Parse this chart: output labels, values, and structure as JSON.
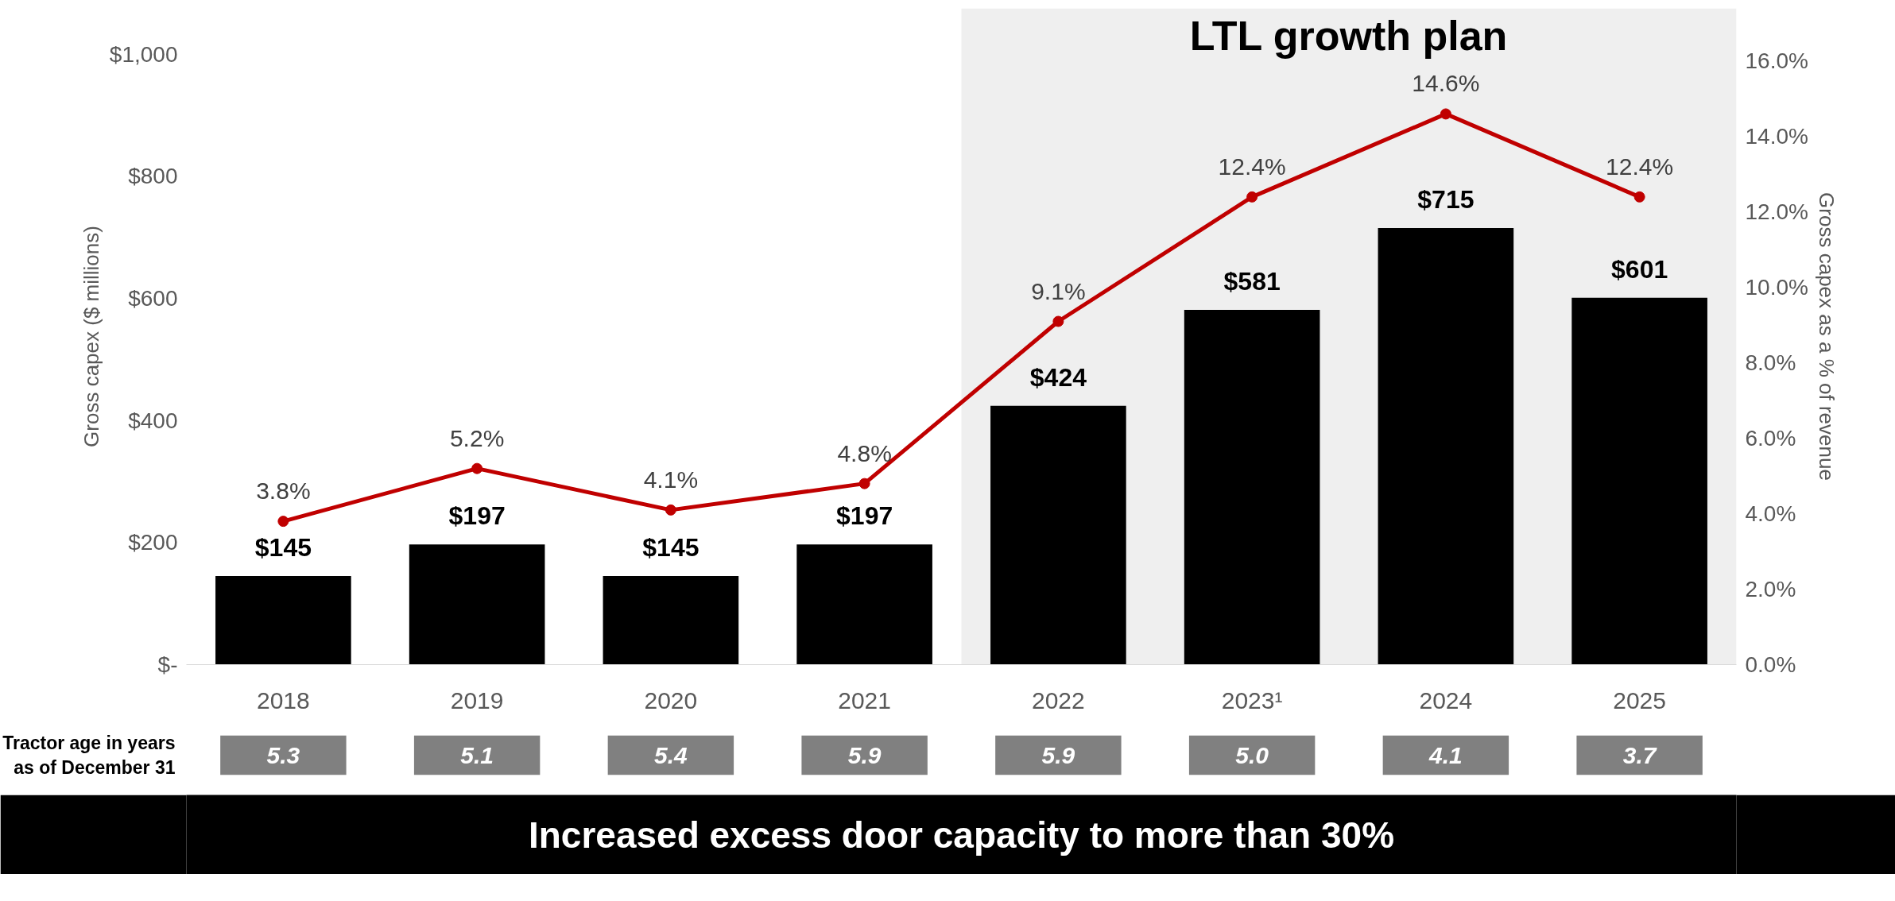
{
  "chart_data": {
    "type": "bar",
    "categories": [
      "2018",
      "2019",
      "2020",
      "2021",
      "2022",
      "2023¹",
      "2024",
      "2025"
    ],
    "series": [
      {
        "color": "#000000",
        "values": [
          145,
          197,
          145,
          197,
          424,
          581,
          715,
          601
        ],
        "value_labels": [
          "$145",
          "$197",
          "$145",
          "$197",
          "$424",
          "$581",
          "$715",
          "$601"
        ]
      },
      {
        "type": "line",
        "axis": "y2",
        "color": "#c00000",
        "values": [
          3.8,
          5.2,
          4.1,
          4.8,
          9.1,
          12.4,
          14.6,
          12.4
        ],
        "value_labels": [
          "3.8%",
          "5.2%",
          "4.1%",
          "4.8%",
          "9.1%",
          "12.4%",
          "14.6%",
          "12.4%"
        ]
      }
    ],
    "ylabel": "Gross capex ($ millions)",
    "y2label": "Gross capex as a % of revenue",
    "ylim": [
      0,
      1075
    ],
    "yticks": [
      {
        "value": 0,
        "label": "$-"
      },
      {
        "value": 200,
        "label": "$200"
      },
      {
        "value": 400,
        "label": "$400"
      },
      {
        "value": 600,
        "label": "$600"
      },
      {
        "value": 800,
        "label": "$800"
      },
      {
        "value": 1000,
        "label": "$1,000"
      }
    ],
    "y2lim": [
      0,
      17.4
    ],
    "y2ticks": [
      {
        "value": 0,
        "label": "0.0%"
      },
      {
        "value": 2,
        "label": "2.0%"
      },
      {
        "value": 4,
        "label": "4.0%"
      },
      {
        "value": 6,
        "label": "6.0%"
      },
      {
        "value": 8,
        "label": "8.0%"
      },
      {
        "value": 10,
        "label": "10.0%"
      },
      {
        "value": 12,
        "label": "12.0%"
      },
      {
        "value": 14,
        "label": "14.0%"
      },
      {
        "value": 16,
        "label": "16.0%"
      }
    ],
    "bands": [
      {
        "axis": "x",
        "from": "2022",
        "to": "2025",
        "label": "LTL growth plan",
        "color": "#efefef"
      }
    ],
    "annotations": [
      "Tractor age in years\nas of December 31",
      "5.3",
      "5.1",
      "5.4",
      "5.9",
      "5.9",
      "5.0",
      "4.1",
      "3.7",
      "Increased excess door capacity to more than 30%"
    ],
    "marker": "circle",
    "line_style": "solid",
    "grid": false
  }
}
